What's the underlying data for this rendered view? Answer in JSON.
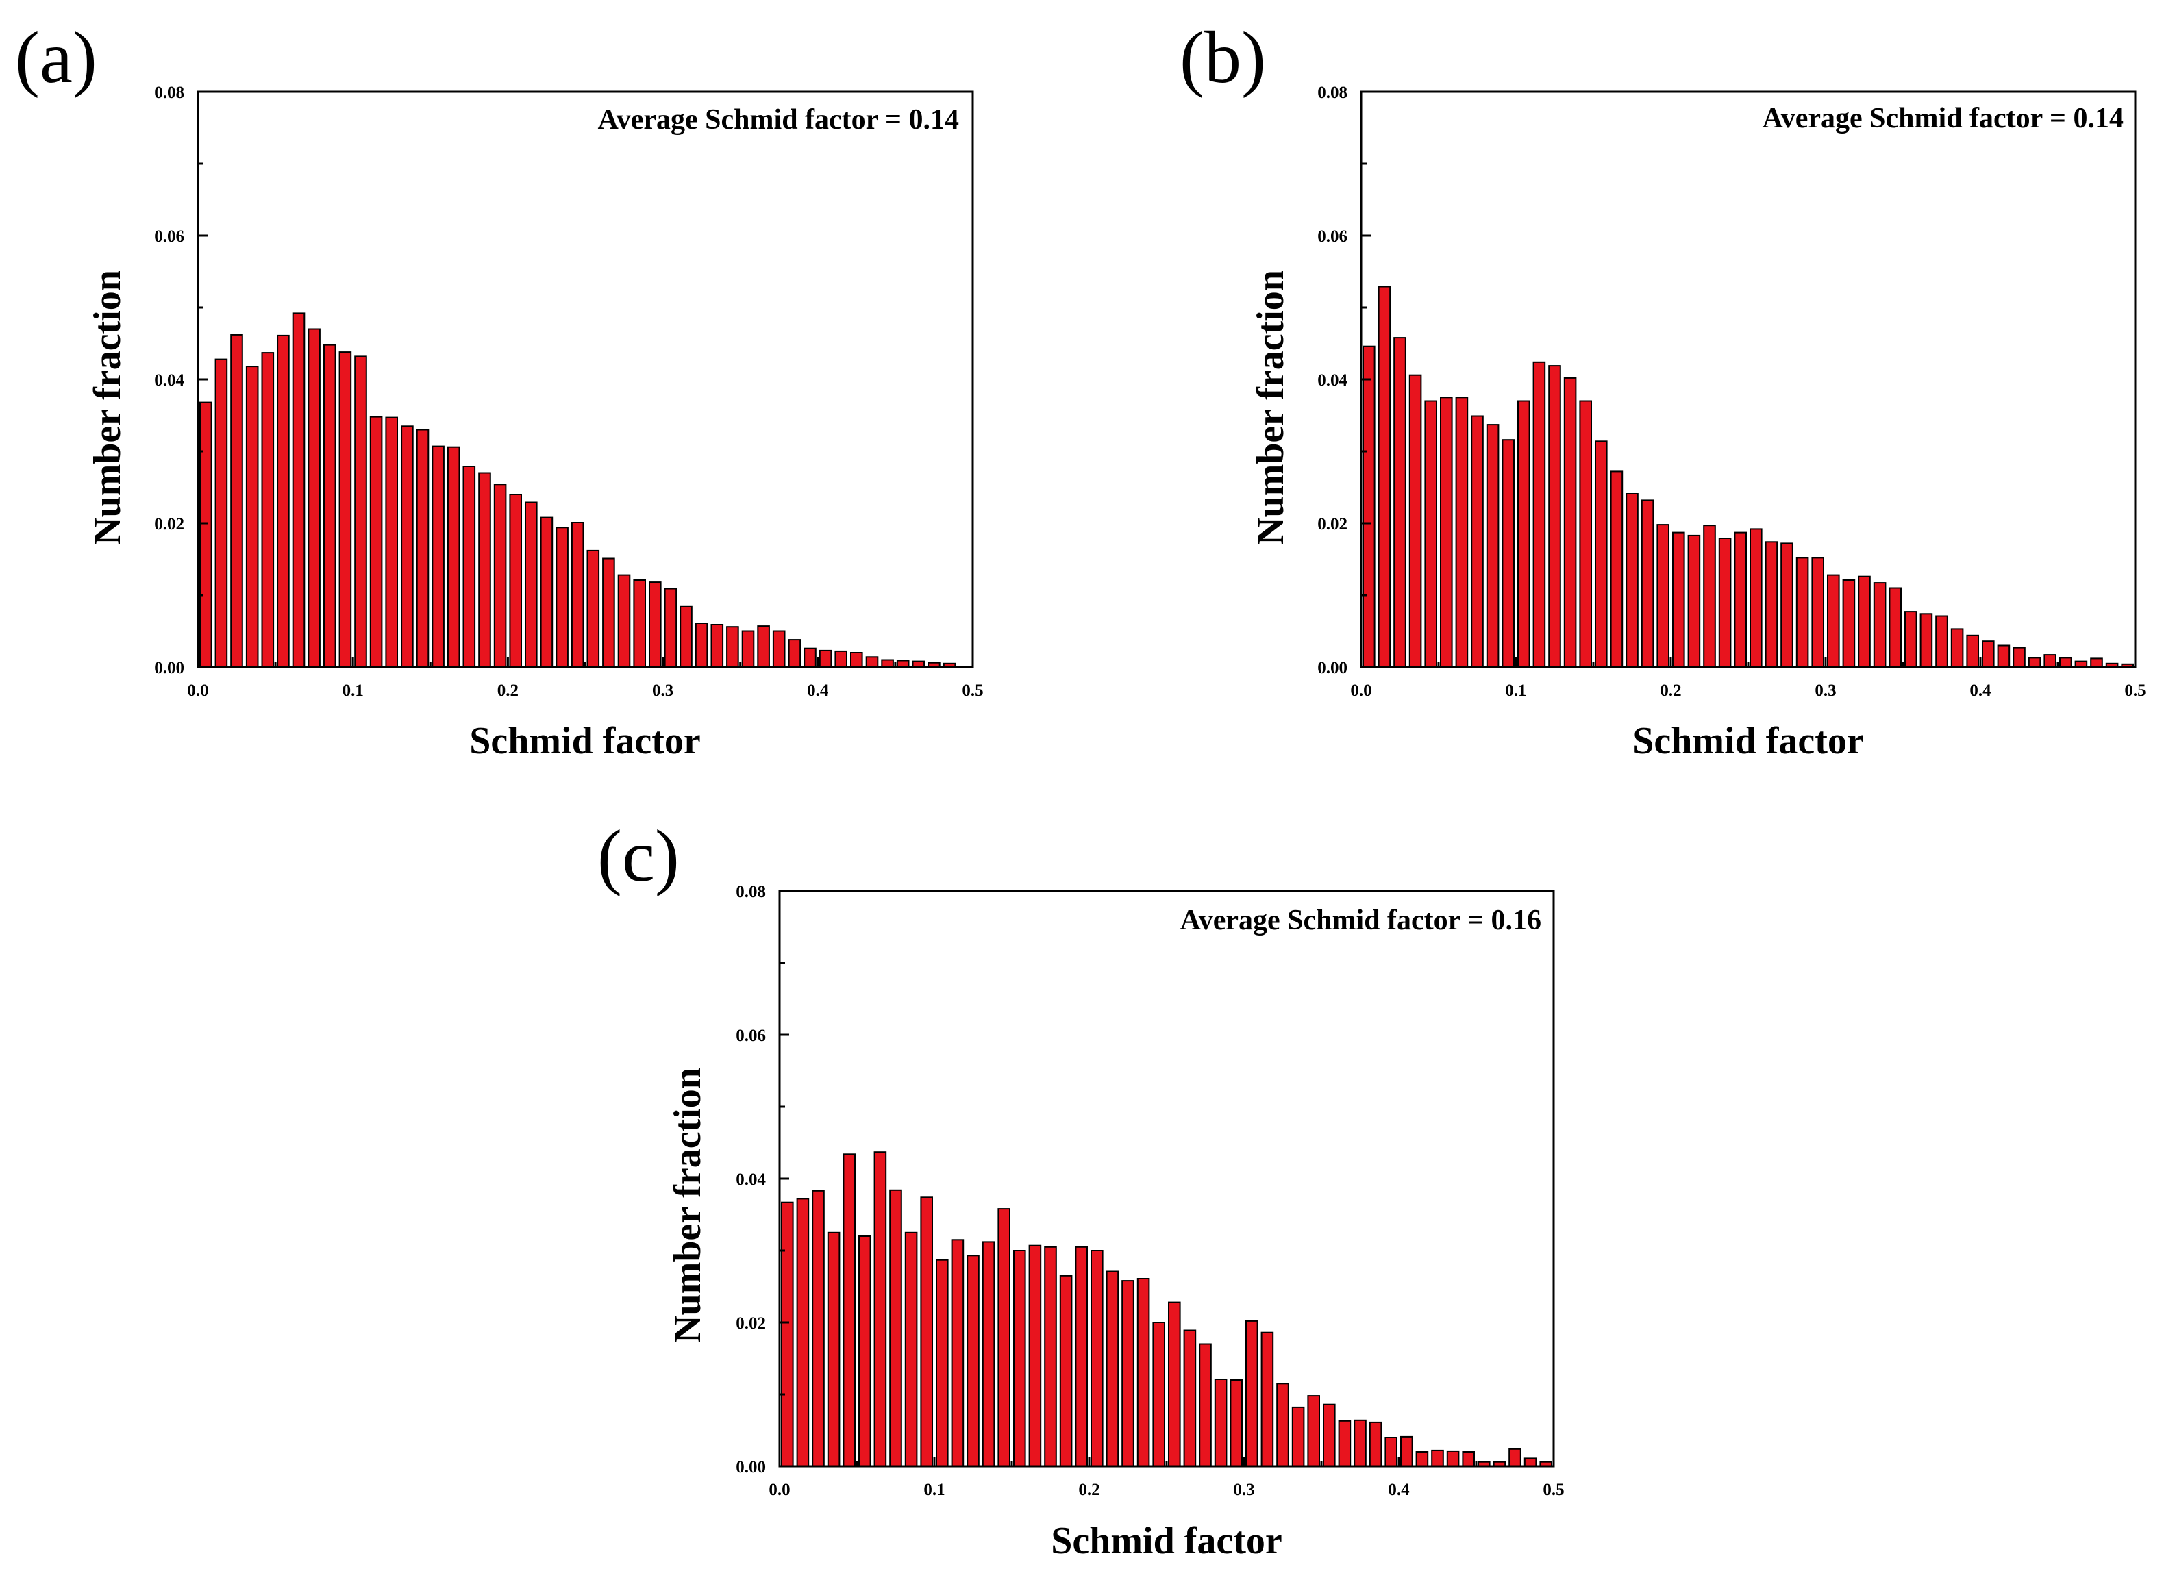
{
  "chart_data": [
    {
      "type": "bar",
      "panel_label": "(a)",
      "annotation": "Average Schmid factor = 0.14",
      "xlabel": "Schmid factor",
      "ylabel": "Number fraction",
      "xlim": [
        0.0,
        0.5
      ],
      "ylim": [
        0.0,
        0.08
      ],
      "xticks": [
        "0.0",
        "0.1",
        "0.2",
        "0.3",
        "0.4",
        "0.5"
      ],
      "yticks": [
        "0.00",
        "0.02",
        "0.04",
        "0.06",
        "0.08"
      ],
      "bin_width": 0.01,
      "values": [
        0.0368,
        0.0428,
        0.0462,
        0.0418,
        0.0437,
        0.0461,
        0.0492,
        0.047,
        0.0448,
        0.0438,
        0.0432,
        0.0348,
        0.0347,
        0.0335,
        0.033,
        0.0307,
        0.0306,
        0.0279,
        0.027,
        0.0254,
        0.024,
        0.0229,
        0.0208,
        0.0194,
        0.0201,
        0.0162,
        0.0151,
        0.0128,
        0.0121,
        0.0118,
        0.0109,
        0.0084,
        0.0061,
        0.0059,
        0.0056,
        0.005,
        0.0057,
        0.005,
        0.0038,
        0.0026,
        0.0023,
        0.0022,
        0.002,
        0.0014,
        0.001,
        0.0009,
        0.0008,
        0.0006,
        0.0005
      ]
    },
    {
      "type": "bar",
      "panel_label": "(b)",
      "annotation": "Average Schmid factor = 0.14",
      "xlabel": "Schmid factor",
      "ylabel": "Number fraction",
      "xlim": [
        0.0,
        0.5
      ],
      "ylim": [
        0.0,
        0.08
      ],
      "xticks": [
        "0.0",
        "0.1",
        "0.2",
        "0.3",
        "0.4",
        "0.5"
      ],
      "yticks": [
        "0.00",
        "0.02",
        "0.04",
        "0.06",
        "0.08"
      ],
      "bin_width": 0.01,
      "values": [
        0.0446,
        0.0529,
        0.0458,
        0.0406,
        0.037,
        0.0375,
        0.0375,
        0.0349,
        0.0337,
        0.0316,
        0.037,
        0.0424,
        0.0419,
        0.0402,
        0.037,
        0.0314,
        0.0272,
        0.0241,
        0.0232,
        0.0198,
        0.0187,
        0.0183,
        0.0197,
        0.0179,
        0.0187,
        0.0192,
        0.0174,
        0.0172,
        0.0152,
        0.0152,
        0.0128,
        0.0121,
        0.0126,
        0.0117,
        0.011,
        0.0077,
        0.0074,
        0.0071,
        0.0053,
        0.0044,
        0.0036,
        0.003,
        0.0027,
        0.0013,
        0.0017,
        0.0013,
        0.0008,
        0.0012,
        0.0005,
        0.0004
      ]
    },
    {
      "type": "bar",
      "panel_label": "(c)",
      "annotation": "Average Schmid factor = 0.16",
      "xlabel": "Schmid factor",
      "ylabel": "Number fraction",
      "xlim": [
        0.0,
        0.5
      ],
      "ylim": [
        0.0,
        0.08
      ],
      "xticks": [
        "0.0",
        "0.1",
        "0.2",
        "0.3",
        "0.4",
        "0.5"
      ],
      "yticks": [
        "0.00",
        "0.02",
        "0.04",
        "0.06",
        "0.08"
      ],
      "bin_width": 0.01,
      "values": [
        0.0367,
        0.0372,
        0.0383,
        0.0325,
        0.0434,
        0.032,
        0.0437,
        0.0384,
        0.0325,
        0.0374,
        0.0287,
        0.0315,
        0.0293,
        0.0312,
        0.0358,
        0.03,
        0.0307,
        0.0305,
        0.0265,
        0.0305,
        0.03,
        0.0271,
        0.0258,
        0.0261,
        0.02,
        0.0228,
        0.0189,
        0.017,
        0.0121,
        0.012,
        0.0202,
        0.0186,
        0.0115,
        0.0082,
        0.0098,
        0.0086,
        0.0063,
        0.0064,
        0.0061,
        0.004,
        0.0041,
        0.002,
        0.0022,
        0.0021,
        0.002,
        0.0006,
        0.0006,
        0.0024,
        0.0011,
        0.0006
      ]
    }
  ]
}
